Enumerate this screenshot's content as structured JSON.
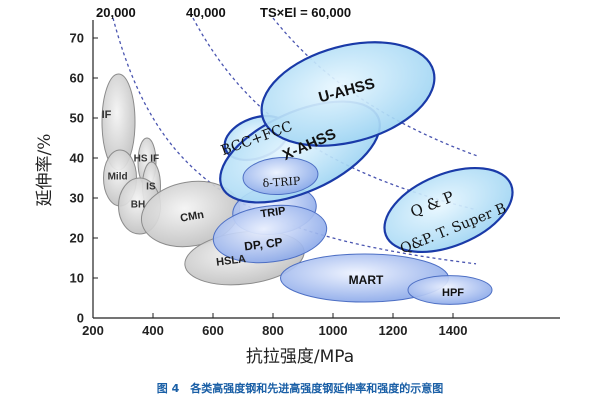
{
  "chart_data": {
    "type": "scatter",
    "title": "",
    "xlabel": "抗拉强度/MPa",
    "ylabel": "延伸率/%",
    "xlim": [
      200,
      1600
    ],
    "ylim": [
      0,
      75
    ],
    "x_ticks": [
      "200",
      "400",
      "600",
      "800",
      "1000",
      "1200",
      "1400"
    ],
    "y_ticks": [
      "0",
      "10",
      "20",
      "30",
      "40",
      "50",
      "60",
      "70"
    ],
    "grid": false,
    "iso_curves": [
      {
        "label": "20,000",
        "product": 20000
      },
      {
        "label": "40,000",
        "product": 40000
      },
      {
        "label": "TS×El = 60,000",
        "product": 60000
      }
    ],
    "regions": [
      {
        "label": "IF",
        "cx": 285,
        "cy": 49,
        "rx": 55,
        "ry": 12,
        "rot": 0,
        "group": "conventional"
      },
      {
        "label": "Mild",
        "cx": 290,
        "cy": 35,
        "rx": 55,
        "ry": 7,
        "rot": 0,
        "group": "conventional"
      },
      {
        "label": "HS IF",
        "cx": 380,
        "cy": 39,
        "rx": 30,
        "ry": 6,
        "rot": 0,
        "group": "conventional"
      },
      {
        "label": "IS",
        "cx": 395,
        "cy": 33,
        "rx": 30,
        "ry": 6,
        "rot": 0,
        "group": "conventional"
      },
      {
        "label": "BH",
        "cx": 355,
        "cy": 28,
        "rx": 70,
        "ry": 7,
        "rot": 0,
        "group": "conventional"
      },
      {
        "label": "CMn",
        "cx": 525,
        "cy": 26,
        "rx": 165,
        "ry": 8,
        "rot": -10,
        "group": "conventional"
      },
      {
        "label": "HSLA",
        "cx": 705,
        "cy": 15,
        "rx": 200,
        "ry": 6.5,
        "rot": -7,
        "group": "conventional"
      },
      {
        "label": "TRIP",
        "cx": 805,
        "cy": 27,
        "rx": 140,
        "ry": 6,
        "rot": -8,
        "group": "ahss"
      },
      {
        "label": "DP, CP",
        "cx": 790,
        "cy": 21,
        "rx": 190,
        "ry": 7,
        "rot": -7,
        "group": "ahss"
      },
      {
        "label": "MART",
        "cx": 1105,
        "cy": 10,
        "rx": 280,
        "ry": 6,
        "rot": 0,
        "group": "ahss"
      },
      {
        "label": "HPF",
        "cx": 1390,
        "cy": 7,
        "rx": 140,
        "ry": 3.6,
        "rot": 0,
        "group": "ahss"
      },
      {
        "label": "δ-TRIP",
        "cx": 825,
        "cy": 35.5,
        "rx": 125,
        "ry": 4.6,
        "rot": -4,
        "group": "ahss2"
      },
      {
        "label": "BCC+FCC",
        "cx": 745,
        "cy": 45,
        "rx": 110,
        "ry": 5,
        "rot": -20,
        "group": "gen3"
      },
      {
        "label": "X-AHSS",
        "cx": 890,
        "cy": 41.5,
        "rx": 285,
        "ry": 10,
        "rot": -24,
        "group": "gen3"
      },
      {
        "label": "U-AHSS",
        "cx": 1050,
        "cy": 56,
        "rx": 295,
        "ry": 12,
        "rot": -15,
        "group": "gen3"
      },
      {
        "label": "Q & P",
        "cx": 1385,
        "cy": 27,
        "rx": 225,
        "ry": 9,
        "rot": -22,
        "group": "gen3"
      },
      {
        "label": "Q&P. T. Super B",
        "cx": 1405,
        "cy": 24,
        "rx": 200,
        "ry": 5,
        "rot": -22,
        "group": "gen3-text"
      }
    ]
  },
  "caption": "图 4　各类高强度钢和先进高强度钢延伸率和强度的示意图",
  "colors": {
    "conventional_fill": "#d6d6d6",
    "conventional_stroke": "#8c8c8c",
    "ahss_fill": "#9fb9ee",
    "ahss_stroke": "#4d6fc4",
    "gen3_fill": "#bde4f7",
    "gen3_stroke": "#1a3aa8",
    "iso_curve": "#4a55b0"
  }
}
